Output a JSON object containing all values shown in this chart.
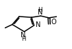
{
  "bg_color": "#ffffff",
  "bond_color": "#000000",
  "text_color": "#000000",
  "bond_lw": 1.1,
  "font_size": 7,
  "figsize": [
    1.05,
    0.71
  ],
  "dpi": 100,
  "xlim": [
    0.0,
    1.0
  ],
  "ylim": [
    0.0,
    1.0
  ]
}
